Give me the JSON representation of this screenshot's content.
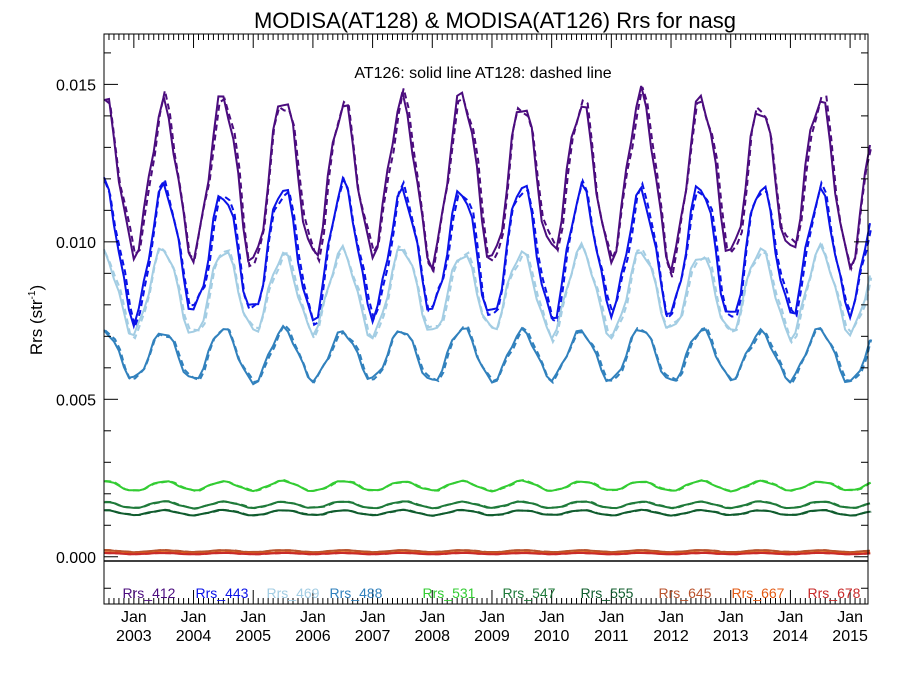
{
  "chart_data": {
    "type": "line",
    "title": "MODISA(AT128) & MODISA(AT126)  Rrs for nasg",
    "ylabel": "Rrs (str",
    "ylabel_sup": "-1",
    "ylabel_close": ")",
    "annotation": "AT126: solid line   AT128: dashed line",
    "ylim": [
      -0.0015,
      0.0166
    ],
    "y_ticks": [
      "0.000",
      "0.005",
      "0.010",
      "0.015"
    ],
    "x_range_years": [
      2002.5,
      2015.3
    ],
    "x_ticks": [
      {
        "month": "Jan",
        "year": "2003"
      },
      {
        "month": "Jan",
        "year": "2004"
      },
      {
        "month": "Jan",
        "year": "2005"
      },
      {
        "month": "Jan",
        "year": "2006"
      },
      {
        "month": "Jan",
        "year": "2007"
      },
      {
        "month": "Jan",
        "year": "2008"
      },
      {
        "month": "Jan",
        "year": "2009"
      },
      {
        "month": "Jan",
        "year": "2010"
      },
      {
        "month": "Jan",
        "year": "2011"
      },
      {
        "month": "Jan",
        "year": "2012"
      },
      {
        "month": "Jan",
        "year": "2013"
      },
      {
        "month": "Jan",
        "year": "2014"
      },
      {
        "month": "Jan",
        "year": "2015"
      }
    ],
    "grid": false,
    "legend_position": "bottom",
    "series": [
      {
        "name": "Rrs_412",
        "color": "#4b0c7e",
        "base": 0.012,
        "amp": 0.0025,
        "phase": 0.5
      },
      {
        "name": "Rrs_443",
        "color": "#0a12e8",
        "base": 0.0097,
        "amp": 0.002,
        "phase": 0.5
      },
      {
        "name": "Rrs_469",
        "color": "#a3cde3",
        "base": 0.0084,
        "amp": 0.0013,
        "phase": 0.5
      },
      {
        "name": "Rrs_488",
        "color": "#3181bd",
        "base": 0.0064,
        "amp": 0.0008,
        "phase": 0.5
      },
      {
        "name": "Rrs_531",
        "color": "#33cc33",
        "base": 0.00225,
        "amp": 0.00015,
        "phase": 0.5
      },
      {
        "name": "Rrs_547",
        "color": "#1f7a3a",
        "base": 0.00165,
        "amp": 0.0001,
        "phase": 0.5
      },
      {
        "name": "Rrs_555",
        "color": "#105c2e",
        "base": 0.0014,
        "amp": 8e-05,
        "phase": 0.5
      },
      {
        "name": "Rrs_645",
        "color": "#b8522c",
        "base": 0.00018,
        "amp": 3e-05,
        "phase": 0.5
      },
      {
        "name": "Rrs_667",
        "color": "#e35a13",
        "base": 0.00012,
        "amp": 2e-05,
        "phase": 0.5
      },
      {
        "name": "Rrs_678",
        "color": "#c82a2a",
        "base": 0.0001,
        "amp": 2e-05,
        "phase": 0.5
      }
    ]
  }
}
